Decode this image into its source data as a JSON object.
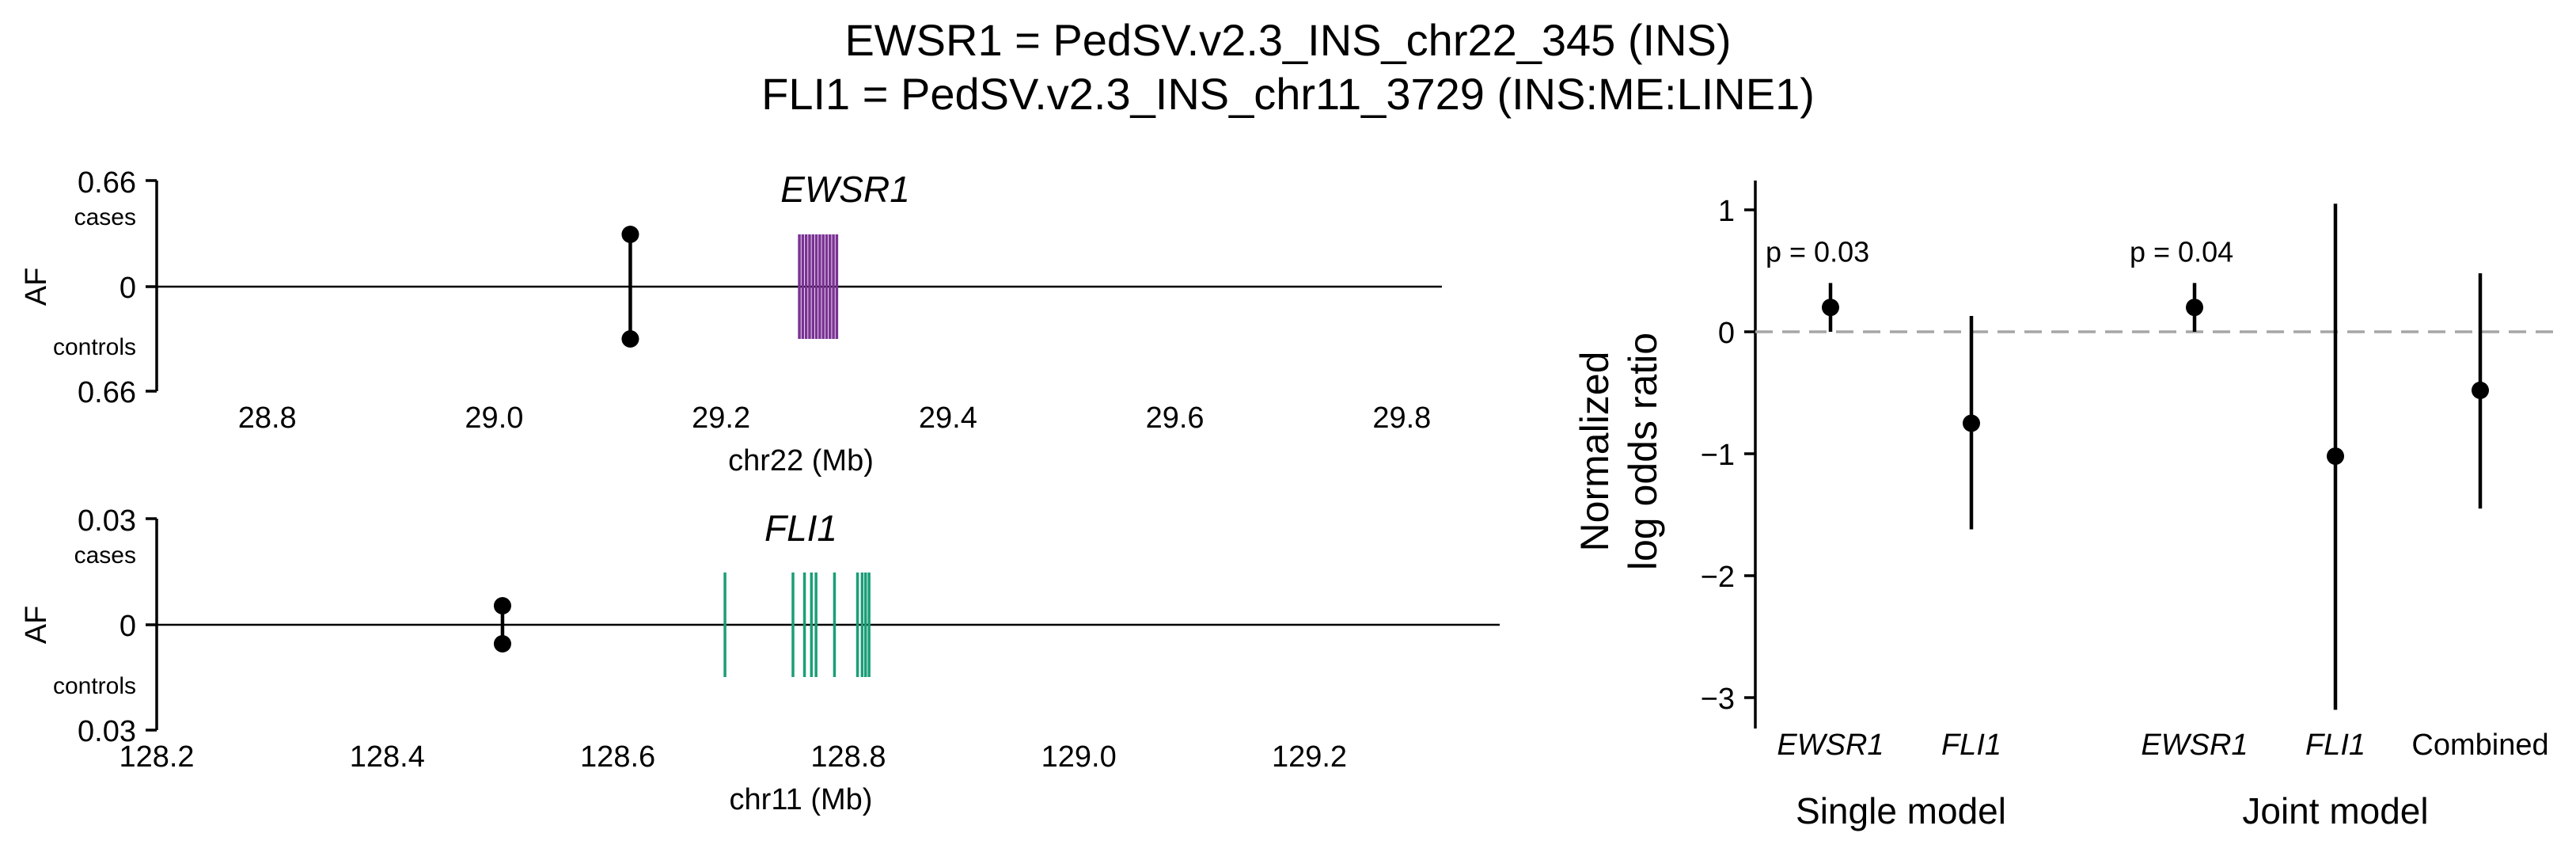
{
  "figure": {
    "title_line1": "EWSR1 = PedSV.v2.3_INS_chr22_345 (INS)",
    "title_line2": "FLI1 = PedSV.v2.3_INS_chr11_3729 (INS:ME:LINE1)"
  },
  "chart_data": [
    {
      "type": "lollipop",
      "panel": "EWSR1",
      "gene_label": "EWSR1",
      "xlabel": "chr22 (Mb)",
      "ylabel": "AF",
      "y_top_tick": "0.66",
      "y_zero_tick": "0",
      "y_bottom_tick": "0.66",
      "cases_label": "cases",
      "controls_label": "controls",
      "xlim": [
        28.75,
        29.82
      ],
      "xticks": [
        "28.8",
        "29.0",
        "29.2",
        "29.4",
        "29.6",
        "29.8"
      ],
      "xtick_values": [
        28.8,
        29.0,
        29.2,
        29.4,
        29.6,
        29.8
      ],
      "ylim": [
        -0.66,
        0.66
      ],
      "variant": {
        "position": 29.12,
        "af_cases": 0.33,
        "af_controls": 0.3
      },
      "gene_color": "#7b3294",
      "exons": [
        29.269,
        29.272,
        29.275,
        29.278,
        29.281,
        29.284,
        29.287,
        29.29,
        29.293,
        29.296,
        29.299,
        29.302
      ]
    },
    {
      "type": "lollipop",
      "panel": "FLI1",
      "gene_label": "FLI1",
      "xlabel": "chr11 (Mb)",
      "ylabel": "AF",
      "y_top_tick": "0.03",
      "y_zero_tick": "0",
      "y_bottom_tick": "0.03",
      "cases_label": "cases",
      "controls_label": "controls",
      "xlim": [
        128.2,
        129.35
      ],
      "xticks": [
        "128.2",
        "128.4",
        "128.6",
        "128.8",
        "129.0",
        "129.2"
      ],
      "xtick_values": [
        128.2,
        128.4,
        128.6,
        128.8,
        129.0,
        129.2
      ],
      "ylim": [
        -0.03,
        0.03
      ],
      "variant": {
        "position": 128.5,
        "af_cases": 0.011,
        "af_controls": 0.011
      },
      "gene_color": "#1b9e77",
      "exons": [
        128.693,
        128.752,
        128.762,
        128.768,
        128.772,
        128.788,
        128.808,
        128.812,
        128.815,
        128.818
      ]
    },
    {
      "type": "scatter",
      "panel": "odds",
      "ylabel_line1": "Normalized",
      "ylabel_line2": "log odds ratio",
      "ylim": [
        -3.3,
        1.25
      ],
      "yticks": [
        "1",
        "0",
        "−1",
        "−2",
        "−3"
      ],
      "ytick_values": [
        1,
        0,
        -1,
        -2,
        -3
      ],
      "reference_line": 0,
      "points": [
        {
          "label": "EWSR1",
          "italic": true,
          "group": "Single model",
          "estimate": 0.2,
          "lower": 0.0,
          "upper": 0.4,
          "pvalue": "p = 0.03"
        },
        {
          "label": "FLI1",
          "italic": true,
          "group": "Single model",
          "estimate": -0.75,
          "lower": -1.62,
          "upper": 0.13,
          "pvalue": ""
        },
        {
          "label": "EWSR1",
          "italic": true,
          "group": "Joint model",
          "estimate": 0.2,
          "lower": 0.0,
          "upper": 0.4,
          "pvalue": "p = 0.04"
        },
        {
          "label": "FLI1",
          "italic": true,
          "group": "Joint model",
          "estimate": -1.02,
          "lower": -3.1,
          "upper": 1.05,
          "pvalue": ""
        },
        {
          "label": "Combined",
          "italic": false,
          "group": "Joint model",
          "estimate": -0.48,
          "lower": -1.45,
          "upper": 0.48,
          "pvalue": ""
        }
      ],
      "groups": [
        "Single model",
        "Joint model"
      ],
      "point_color": "#000000",
      "reference_color": "#a6a6a6"
    }
  ]
}
